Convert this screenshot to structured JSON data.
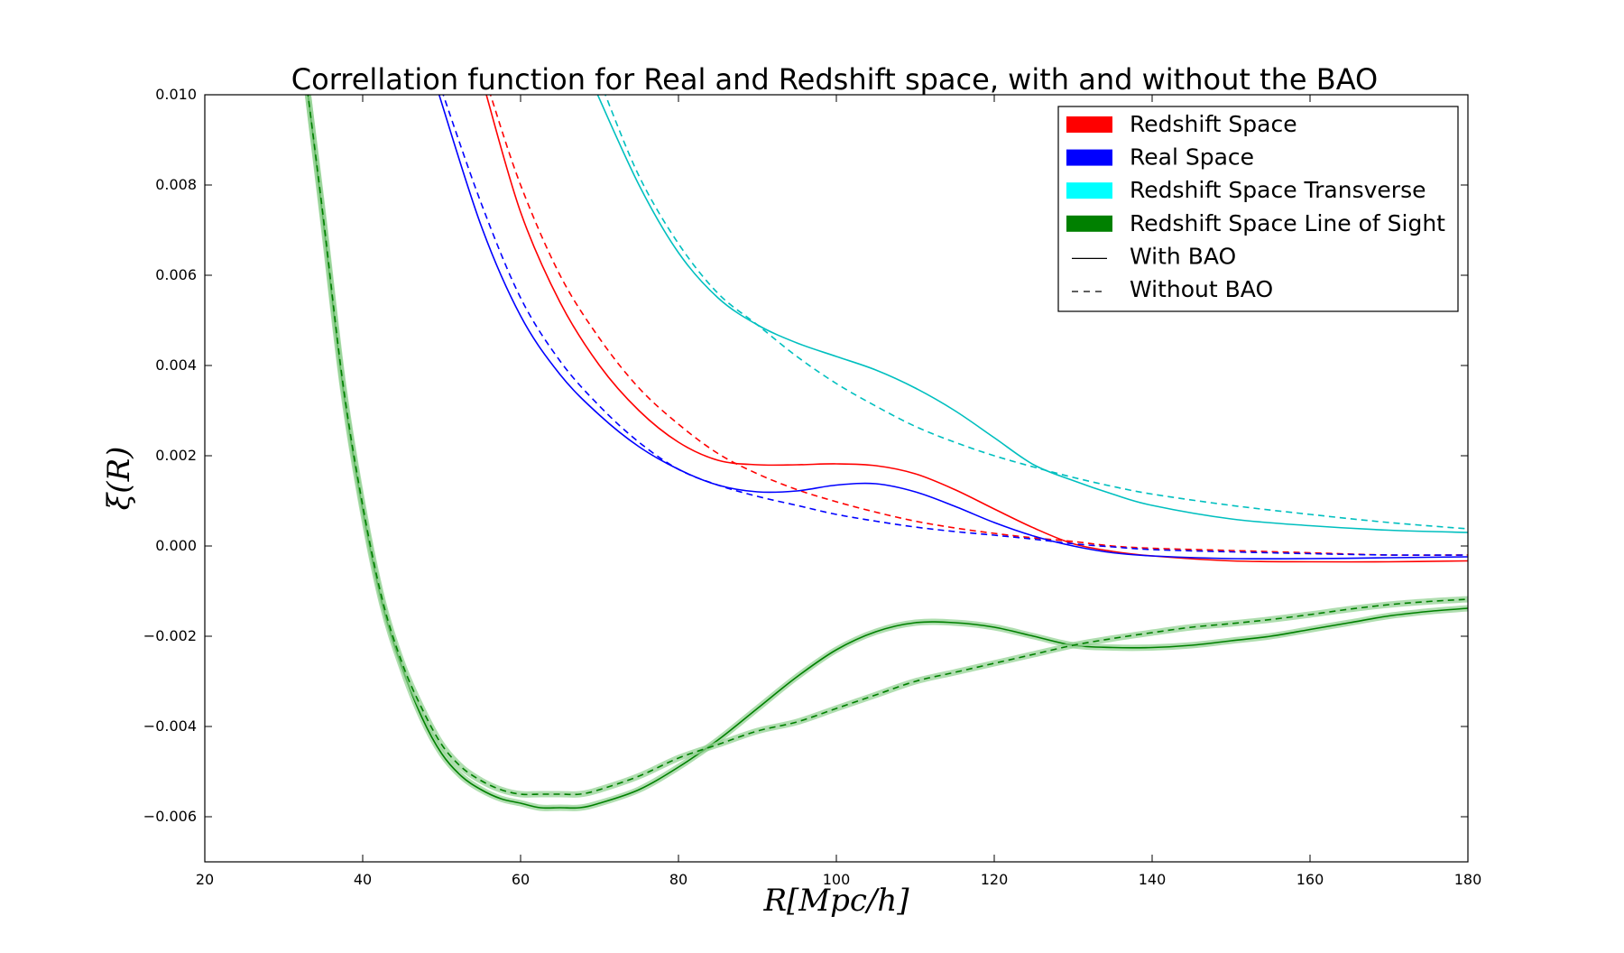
{
  "chart_data": {
    "type": "line",
    "title": "Correllation function for Real and Redshift space, with and without the BAO",
    "xlabel": "R[Mpc/h]",
    "ylabel": "ξ(R)",
    "xlim": [
      20,
      180
    ],
    "ylim": [
      -0.007,
      0.01
    ],
    "x_ticks": [
      20,
      40,
      60,
      80,
      100,
      120,
      140,
      160,
      180
    ],
    "x_tick_labels": [
      "20",
      "40",
      "60",
      "80",
      "100",
      "120",
      "140",
      "160",
      "180"
    ],
    "y_ticks": [
      -0.006,
      -0.004,
      -0.002,
      0.0,
      0.002,
      0.004,
      0.006,
      0.008,
      0.01
    ],
    "y_tick_labels": [
      "−0.006",
      "−0.004",
      "−0.002",
      "0.000",
      "0.002",
      "0.004",
      "0.006",
      "0.008",
      "0.010"
    ],
    "grid": false,
    "legend_position": "top-right",
    "legend": [
      {
        "label": "Redshift Space",
        "kind": "patch",
        "color": "#ff0000"
      },
      {
        "label": "Real Space",
        "kind": "patch",
        "color": "#0000ff"
      },
      {
        "label": "Redshift Space Transverse",
        "kind": "patch",
        "color": "#00ffff"
      },
      {
        "label": "Redshift Space Line of Sight",
        "kind": "patch",
        "color": "#008000"
      },
      {
        "label": "With BAO",
        "kind": "solid",
        "color": "#000000"
      },
      {
        "label": "Without BAO",
        "kind": "dashed",
        "color": "#000000"
      }
    ],
    "series": [
      {
        "group": "Redshift Space",
        "style": "solid",
        "color": "#ff0000",
        "x": [
          55.5,
          60,
          65,
          70,
          75,
          80,
          85,
          90,
          95,
          100,
          105,
          110,
          115,
          120,
          125,
          130,
          135,
          140,
          150,
          160,
          170,
          180
        ],
        "y": [
          0.0101,
          0.0074,
          0.0054,
          0.004,
          0.003,
          0.0023,
          0.0019,
          0.0018,
          0.0018,
          0.00182,
          0.00178,
          0.0016,
          0.00125,
          0.00082,
          0.0004,
          5e-05,
          -0.00012,
          -0.00022,
          -0.00033,
          -0.00035,
          -0.00035,
          -0.00033
        ]
      },
      {
        "group": "Redshift Space",
        "style": "dashed",
        "color": "#ff0000",
        "x": [
          56,
          60,
          65,
          70,
          75,
          80,
          85,
          90,
          95,
          100,
          105,
          110,
          115,
          120,
          125,
          130,
          135,
          140,
          150,
          160,
          170,
          180
        ],
        "y": [
          0.0101,
          0.008,
          0.006,
          0.0046,
          0.0035,
          0.0027,
          0.00205,
          0.0016,
          0.00125,
          0.00098,
          0.00075,
          0.00055,
          0.0004,
          0.00028,
          0.00018,
          0.0001,
          0.0,
          -5e-05,
          -0.0001,
          -0.00015,
          -0.0002,
          -0.0002
        ]
      },
      {
        "group": "Real Space",
        "style": "solid",
        "color": "#0000ff",
        "x": [
          49.5,
          55,
          60,
          65,
          70,
          75,
          80,
          85,
          90,
          95,
          100,
          105,
          110,
          115,
          120,
          125,
          130,
          135,
          140,
          150,
          160,
          170,
          180
        ],
        "y": [
          0.0101,
          0.0071,
          0.0051,
          0.0038,
          0.0029,
          0.0022,
          0.0017,
          0.00135,
          0.0012,
          0.00122,
          0.00135,
          0.00138,
          0.0012,
          0.00088,
          0.00052,
          0.00022,
          0.0,
          -0.00015,
          -0.00022,
          -0.00028,
          -0.00028,
          -0.00026,
          -0.00024
        ]
      },
      {
        "group": "Real Space",
        "style": "dashed",
        "color": "#0000ff",
        "x": [
          50,
          55,
          60,
          65,
          70,
          75,
          80,
          85,
          90,
          95,
          100,
          105,
          110,
          115,
          120,
          125,
          130,
          135,
          140,
          150,
          160,
          170,
          180
        ],
        "y": [
          0.0101,
          0.0076,
          0.0055,
          0.0041,
          0.0031,
          0.0023,
          0.0017,
          0.00135,
          0.0011,
          0.0009,
          0.0007,
          0.00055,
          0.00042,
          0.00032,
          0.00024,
          0.00015,
          5e-05,
          -2e-05,
          -8e-05,
          -0.00013,
          -0.00017,
          -0.0002,
          -0.0002
        ]
      },
      {
        "group": "Redshift Space Transverse",
        "style": "solid",
        "color": "#00bfbf",
        "x": [
          69.5,
          75,
          80,
          85,
          90,
          95,
          100,
          105,
          110,
          115,
          120,
          125,
          130,
          135,
          140,
          150,
          160,
          170,
          180
        ],
        "y": [
          0.0101,
          0.008,
          0.0065,
          0.0055,
          0.0049,
          0.0045,
          0.0042,
          0.0039,
          0.0035,
          0.003,
          0.0024,
          0.0018,
          0.00145,
          0.00115,
          0.0009,
          0.0006,
          0.00045,
          0.00035,
          0.0003
        ]
      },
      {
        "group": "Redshift Space Transverse",
        "style": "dashed",
        "color": "#00bfbf",
        "x": [
          70.5,
          75,
          80,
          85,
          90,
          95,
          100,
          105,
          110,
          115,
          120,
          125,
          130,
          135,
          140,
          150,
          160,
          170,
          180
        ],
        "y": [
          0.0101,
          0.0082,
          0.0067,
          0.0056,
          0.0049,
          0.0042,
          0.0036,
          0.0031,
          0.00265,
          0.0023,
          0.002,
          0.00175,
          0.00152,
          0.00132,
          0.00115,
          0.0009,
          0.0007,
          0.00052,
          0.00038
        ]
      },
      {
        "group": "Redshift Space Line of Sight",
        "style": "solid",
        "color": "#008000",
        "x": [
          33,
          35,
          37.5,
          40,
          42.5,
          45,
          47.5,
          50,
          52.5,
          55,
          57.5,
          60,
          62.5,
          65,
          67.5,
          70,
          75,
          80,
          85,
          90,
          95,
          100,
          105,
          110,
          115,
          120,
          125,
          130,
          135,
          140,
          145,
          150,
          155,
          160,
          165,
          170,
          175,
          180
        ],
        "y": [
          0.0101,
          0.0072,
          0.0035,
          0.0008,
          -0.0013,
          -0.0027,
          -0.0038,
          -0.0046,
          -0.0051,
          -0.0054,
          -0.0056,
          -0.0057,
          -0.0058,
          -0.0058,
          -0.0058,
          -0.0057,
          -0.0054,
          -0.0049,
          -0.0043,
          -0.0036,
          -0.0029,
          -0.0023,
          -0.0019,
          -0.0017,
          -0.0017,
          -0.0018,
          -0.002,
          -0.0022,
          -0.00225,
          -0.00225,
          -0.0022,
          -0.0021,
          -0.002,
          -0.00185,
          -0.0017,
          -0.00155,
          -0.00145,
          -0.00138
        ]
      },
      {
        "group": "Redshift Space Line of Sight",
        "style": "dashed",
        "color": "#008000",
        "x": [
          33,
          35,
          37.5,
          40,
          42.5,
          45,
          47.5,
          50,
          52.5,
          55,
          57.5,
          60,
          62.5,
          65,
          67.5,
          70,
          75,
          80,
          85,
          90,
          95,
          100,
          105,
          110,
          115,
          120,
          125,
          130,
          135,
          140,
          145,
          150,
          155,
          160,
          165,
          170,
          175,
          180
        ],
        "y": [
          0.0101,
          0.0073,
          0.0036,
          0.0009,
          -0.0012,
          -0.0026,
          -0.0036,
          -0.0044,
          -0.0049,
          -0.0052,
          -0.0054,
          -0.0055,
          -0.0055,
          -0.0055,
          -0.0055,
          -0.0054,
          -0.0051,
          -0.0047,
          -0.0044,
          -0.0041,
          -0.0039,
          -0.0036,
          -0.0033,
          -0.003,
          -0.0028,
          -0.0026,
          -0.0024,
          -0.0022,
          -0.00205,
          -0.00192,
          -0.0018,
          -0.00172,
          -0.00163,
          -0.00152,
          -0.0014,
          -0.0013,
          -0.00123,
          -0.00118
        ]
      }
    ]
  }
}
